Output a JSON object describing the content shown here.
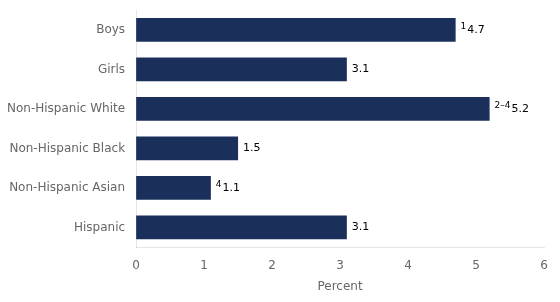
{
  "chart_data": {
    "type": "bar",
    "orientation": "horizontal",
    "categories": [
      "Hispanic",
      "Non-Hispanic Asian",
      "Non-Hispanic Black",
      "Non-Hispanic White",
      "Girls",
      "Boys"
    ],
    "values": [
      3.1,
      1.1,
      1.5,
      5.2,
      3.1,
      4.7
    ],
    "color": "#1b2f5b",
    "xlabel": "Percent",
    "xlim": [
      0,
      6
    ],
    "xticks": [
      0,
      1,
      2,
      3,
      4,
      5,
      6
    ],
    "grid": false,
    "data_labels": true,
    "annotations": [
      {
        "category": "Non-Hispanic Asian",
        "text": "4"
      },
      {
        "category": "Non-Hispanic White",
        "text": "2–4"
      },
      {
        "category": "Boys",
        "text": "1"
      }
    ]
  }
}
